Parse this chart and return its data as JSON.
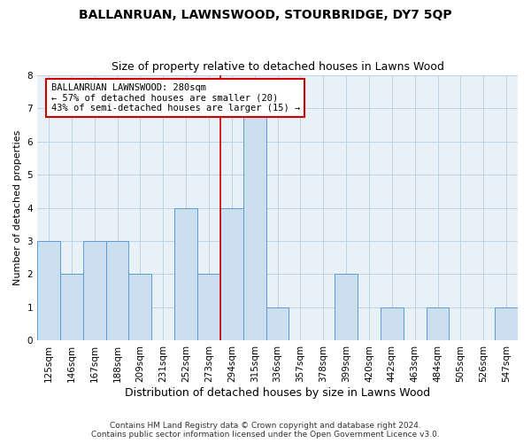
{
  "title": "BALLANRUAN, LAWNSWOOD, STOURBRIDGE, DY7 5QP",
  "subtitle": "Size of property relative to detached houses in Lawns Wood",
  "xlabel": "Distribution of detached houses by size in Lawns Wood",
  "ylabel": "Number of detached properties",
  "categories": [
    "125sqm",
    "146sqm",
    "167sqm",
    "188sqm",
    "209sqm",
    "231sqm",
    "252sqm",
    "273sqm",
    "294sqm",
    "315sqm",
    "336sqm",
    "357sqm",
    "378sqm",
    "399sqm",
    "420sqm",
    "442sqm",
    "463sqm",
    "484sqm",
    "505sqm",
    "526sqm",
    "547sqm"
  ],
  "values": [
    3,
    2,
    3,
    3,
    2,
    0,
    4,
    2,
    4,
    7,
    1,
    0,
    0,
    2,
    0,
    1,
    0,
    1,
    0,
    0,
    1
  ],
  "bar_color": "#ccdff0",
  "bar_edge_color": "#5b9bd5",
  "highlight_index": 7,
  "highlight_line_color": "#cc0000",
  "highlight_label": "BALLANRUAN LAWNSWOOD: 280sqm\n← 57% of detached houses are smaller (20)\n43% of semi-detached houses are larger (15) →",
  "ylim": [
    0,
    8
  ],
  "yticks": [
    0,
    1,
    2,
    3,
    4,
    5,
    6,
    7,
    8
  ],
  "grid_color": "#b8cfe0",
  "background_color": "#e8f0f8",
  "footnote": "Contains HM Land Registry data © Crown copyright and database right 2024.\nContains public sector information licensed under the Open Government Licence v3.0.",
  "title_fontsize": 10,
  "subtitle_fontsize": 9,
  "xlabel_fontsize": 9,
  "ylabel_fontsize": 8,
  "tick_fontsize": 7.5,
  "annotation_fontsize": 7.5,
  "footnote_fontsize": 6.5
}
